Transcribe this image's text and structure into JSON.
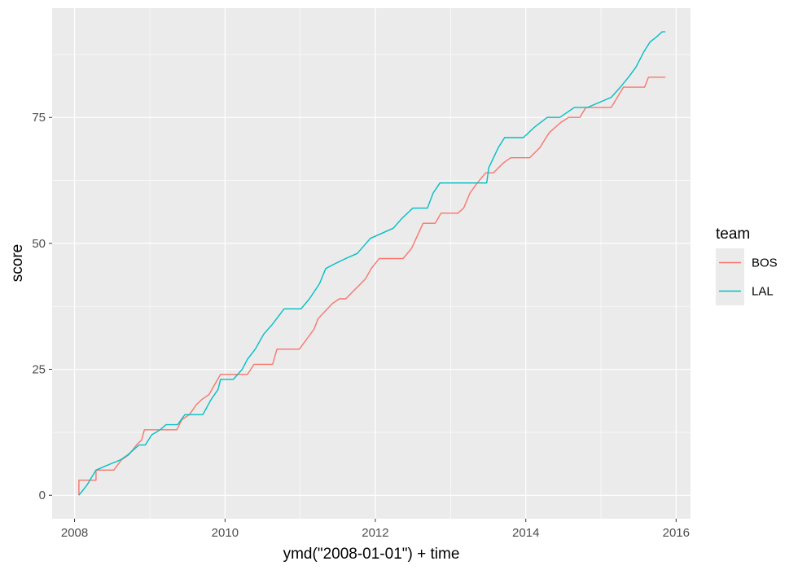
{
  "chart_data": {
    "type": "line",
    "xlabel": "ymd(\"2008-01-01\") + time",
    "ylabel": "score",
    "x_ticks": [
      "2008",
      "2010",
      "2012",
      "2014",
      "2016"
    ],
    "y_ticks": [
      "0",
      "25",
      "50",
      "75"
    ],
    "x_range": [
      "2007-09-14",
      "2016-03-11"
    ],
    "y_range": [
      -4.65,
      96.7
    ],
    "grid": true,
    "legend_title": "team",
    "legend_position": "right",
    "series": [
      {
        "name": "BOS",
        "color": "#F8766D",
        "points": [
          [
            "2008-01-22",
            0
          ],
          [
            "2008-01-22",
            3
          ],
          [
            "2008-04-14",
            3
          ],
          [
            "2008-04-14",
            5
          ],
          [
            "2008-07-10",
            5
          ],
          [
            "2008-08-15",
            7
          ],
          [
            "2008-09-20",
            8
          ],
          [
            "2008-10-28",
            10
          ],
          [
            "2008-11-22",
            11
          ],
          [
            "2008-12-05",
            13
          ],
          [
            "2009-05-12",
            13
          ],
          [
            "2009-06-05",
            15
          ],
          [
            "2009-07-12",
            16
          ],
          [
            "2009-08-15",
            18
          ],
          [
            "2009-09-10",
            19
          ],
          [
            "2009-10-15",
            20
          ],
          [
            "2009-11-12",
            22
          ],
          [
            "2009-12-10",
            24
          ],
          [
            "2010-04-20",
            24
          ],
          [
            "2010-05-22",
            26
          ],
          [
            "2010-08-20",
            26
          ],
          [
            "2010-09-10",
            29
          ],
          [
            "2010-12-28",
            29
          ],
          [
            "2011-03-10",
            33
          ],
          [
            "2011-03-28",
            35
          ],
          [
            "2011-06-05",
            38
          ],
          [
            "2011-07-10",
            39
          ],
          [
            "2011-08-10",
            39
          ],
          [
            "2011-10-22",
            42
          ],
          [
            "2011-11-15",
            43
          ],
          [
            "2011-12-12",
            45
          ],
          [
            "2012-01-20",
            47
          ],
          [
            "2012-05-15",
            47
          ],
          [
            "2012-06-25",
            49
          ],
          [
            "2012-08-20",
            54
          ],
          [
            "2012-10-18",
            54
          ],
          [
            "2012-11-15",
            56
          ],
          [
            "2013-02-05",
            56
          ],
          [
            "2013-03-05",
            57
          ],
          [
            "2013-04-05",
            60
          ],
          [
            "2013-05-10",
            62
          ],
          [
            "2013-06-20",
            64
          ],
          [
            "2013-07-28",
            64
          ],
          [
            "2013-09-15",
            66
          ],
          [
            "2013-10-20",
            67
          ],
          [
            "2014-01-20",
            67
          ],
          [
            "2014-03-10",
            69
          ],
          [
            "2014-04-25",
            72
          ],
          [
            "2014-06-20",
            74
          ],
          [
            "2014-07-28",
            75
          ],
          [
            "2014-09-20",
            75
          ],
          [
            "2014-10-20",
            77
          ],
          [
            "2015-02-20",
            77
          ],
          [
            "2015-04-20",
            81
          ],
          [
            "2015-08-01",
            81
          ],
          [
            "2015-08-20",
            83
          ],
          [
            "2015-11-10",
            83
          ]
        ]
      },
      {
        "name": "LAL",
        "color": "#00BFC4",
        "points": [
          [
            "2008-01-22",
            0
          ],
          [
            "2008-03-01",
            2
          ],
          [
            "2008-04-14",
            5
          ],
          [
            "2008-06-10",
            6
          ],
          [
            "2008-08-10",
            7
          ],
          [
            "2008-09-15",
            8
          ],
          [
            "2008-11-10",
            10
          ],
          [
            "2008-12-10",
            10
          ],
          [
            "2009-01-10",
            12
          ],
          [
            "2009-02-20",
            13
          ],
          [
            "2009-03-20",
            14
          ],
          [
            "2009-05-15",
            14
          ],
          [
            "2009-06-20",
            16
          ],
          [
            "2009-09-15",
            16
          ],
          [
            "2009-10-25",
            19
          ],
          [
            "2009-11-28",
            21
          ],
          [
            "2009-12-10",
            23
          ],
          [
            "2010-02-10",
            23
          ],
          [
            "2010-03-25",
            25
          ],
          [
            "2010-04-20",
            27
          ],
          [
            "2010-05-28",
            29
          ],
          [
            "2010-07-08",
            32
          ],
          [
            "2010-08-20",
            34
          ],
          [
            "2010-10-15",
            37
          ],
          [
            "2011-01-05",
            37
          ],
          [
            "2011-02-15",
            39
          ],
          [
            "2011-04-05",
            42
          ],
          [
            "2011-05-05",
            45
          ],
          [
            "2011-06-20",
            46
          ],
          [
            "2011-08-10",
            47
          ],
          [
            "2011-10-05",
            48
          ],
          [
            "2011-12-08",
            51
          ],
          [
            "2012-03-28",
            53
          ],
          [
            "2012-05-10",
            55
          ],
          [
            "2012-07-01",
            57
          ],
          [
            "2012-09-10",
            57
          ],
          [
            "2012-10-08",
            60
          ],
          [
            "2012-11-10",
            62
          ],
          [
            "2013-06-25",
            62
          ],
          [
            "2013-07-05",
            65
          ],
          [
            "2013-08-20",
            69
          ],
          [
            "2013-09-20",
            71
          ],
          [
            "2013-12-20",
            71
          ],
          [
            "2014-02-10",
            73
          ],
          [
            "2014-04-15",
            75
          ],
          [
            "2014-06-15",
            75
          ],
          [
            "2014-08-25",
            77
          ],
          [
            "2014-10-28",
            77
          ],
          [
            "2015-02-20",
            79
          ],
          [
            "2015-04-05",
            81
          ],
          [
            "2015-05-15",
            83
          ],
          [
            "2015-06-20",
            85
          ],
          [
            "2015-07-28",
            88
          ],
          [
            "2015-08-28",
            90
          ],
          [
            "2015-09-28",
            91
          ],
          [
            "2015-10-25",
            92
          ],
          [
            "2015-11-10",
            92
          ]
        ]
      }
    ]
  }
}
